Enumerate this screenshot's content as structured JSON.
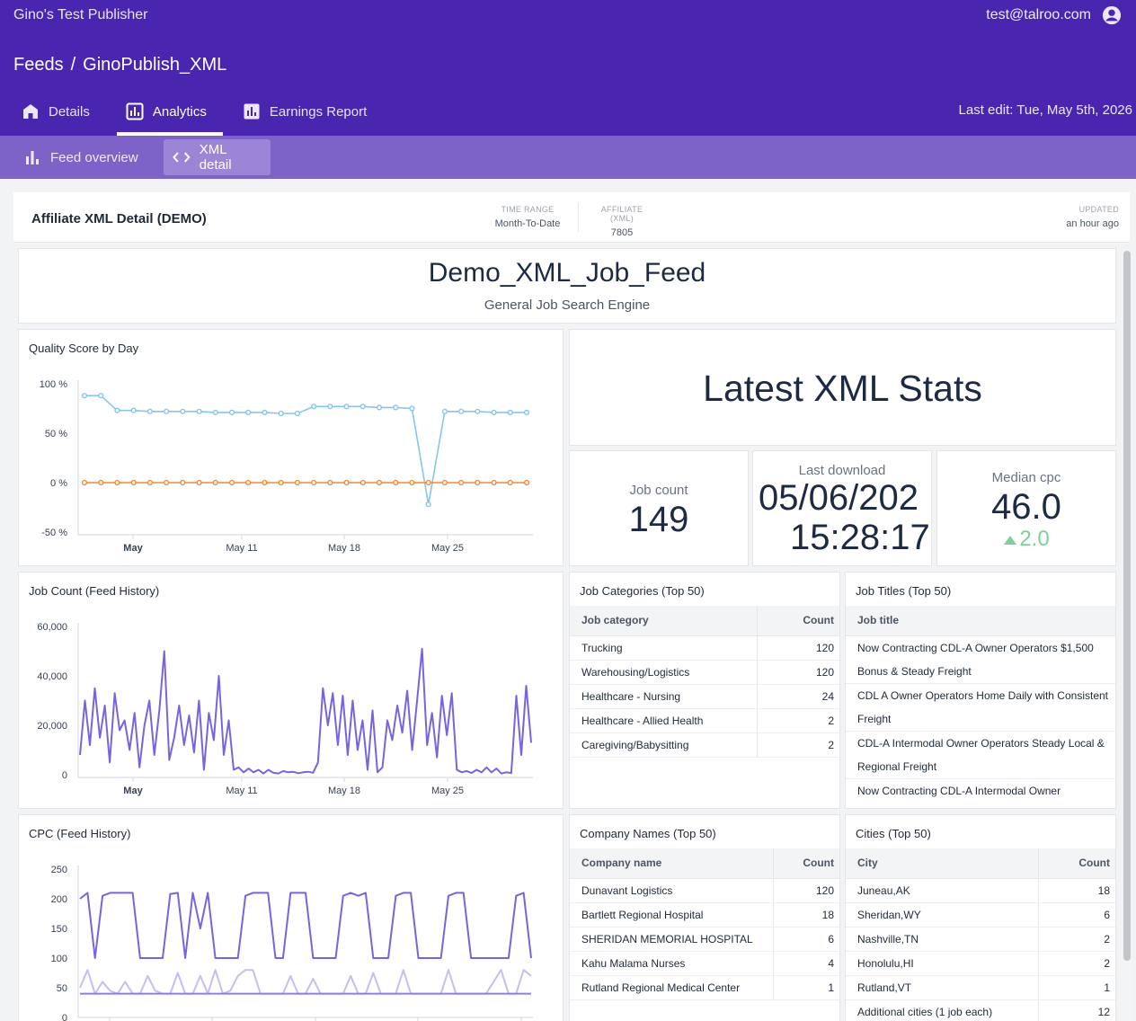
{
  "header": {
    "app_title": "Gino's Test Publisher",
    "user_email": "test@talroo.com",
    "breadcrumb": [
      "Feeds",
      "/",
      "GinoPublish_XML"
    ],
    "tabs": [
      {
        "label": "Details",
        "icon": "home-icon"
      },
      {
        "label": "Analytics",
        "icon": "analytics-icon",
        "active": true
      },
      {
        "label": "Earnings Report",
        "icon": "report-icon"
      }
    ],
    "last_edit": "Last edit: Tue, May 5th, 2026"
  },
  "subnav": {
    "items": [
      {
        "label": "Feed overview",
        "icon": "bar-chart-icon"
      },
      {
        "label": "XML detail",
        "icon": "code-icon",
        "active": true
      }
    ]
  },
  "report": {
    "title": "Affiliate XML Detail (DEMO)",
    "time_range_label": "TIME RANGE",
    "time_range_value": "Month-To-Date",
    "affiliate_label": "AFFILIATE (XML)",
    "affiliate_value": "7805",
    "updated_label": "UPDATED",
    "updated_value": "an hour ago"
  },
  "feed": {
    "name": "Demo_XML_Job_Feed",
    "subtitle": "General Job Search Engine"
  },
  "stats": {
    "title": "Latest XML Stats",
    "job_count_label": "Job count",
    "job_count_value": "149",
    "last_download_label": "Last download",
    "last_download_date": "05/06/202",
    "last_download_time": "15:28:17",
    "median_cpc_label": "Median cpc",
    "median_cpc_value": "46.0",
    "median_cpc_delta": "2.0",
    "colors": {
      "positive": "#7fcf9a"
    }
  },
  "job_categories": {
    "title": "Job Categories (Top 50)",
    "col_category": "Job category",
    "col_count": "Count",
    "rows": [
      {
        "name": "Trucking",
        "count": "120"
      },
      {
        "name": "Warehousing/Logistics",
        "count": "120"
      },
      {
        "name": "Healthcare - Nursing",
        "count": "24"
      },
      {
        "name": "Healthcare - Allied Health",
        "count": "2"
      },
      {
        "name": "Caregiving/Babysitting",
        "count": "2"
      }
    ]
  },
  "job_titles": {
    "title": "Job Titles (Top 50)",
    "col_title": "Job title",
    "rows": [
      "Now Contracting CDL-A Owner Operators $1,500 Bonus & Steady Freight",
      "CDL A Owner Operators Home Daily with Consistent Freight",
      "CDL-A Intermodal Owner Operators Steady Local & Regional Freight",
      "Now Contracting CDL-A Intermodal Owner Operators Steady Freight"
    ]
  },
  "company_names": {
    "title": "Company Names (Top 50)",
    "col_name": "Company name",
    "col_count": "Count",
    "rows": [
      {
        "name": "Dunavant Logistics",
        "count": "120"
      },
      {
        "name": "Bartlett Regional Hospital",
        "count": "18"
      },
      {
        "name": "SHERIDAN MEMORIAL HOSPITAL",
        "count": "6"
      },
      {
        "name": "Kahu Malama Nurses",
        "count": "4"
      },
      {
        "name": "Rutland Regional Medical Center",
        "count": "1"
      }
    ]
  },
  "cities": {
    "title": "Cities (Top 50)",
    "col_city": "City",
    "col_count": "Count",
    "rows": [
      {
        "name": "Juneau,AK",
        "count": "18"
      },
      {
        "name": "Sheridan,WY",
        "count": "6"
      },
      {
        "name": "Nashville,TN",
        "count": "2"
      },
      {
        "name": "Honolulu,HI",
        "count": "2"
      },
      {
        "name": "Rutland,VT",
        "count": "1"
      },
      {
        "name": "Additional cities (1 job each)",
        "count": "12"
      }
    ]
  },
  "chart_data": [
    {
      "type": "line",
      "title": "Quality Score by Day",
      "x_ticks": [
        "May",
        "May 11",
        "May 18",
        "May 25"
      ],
      "y_ticks": [
        "100 %",
        "50 %",
        "0 %",
        "-50 %"
      ],
      "ylim": [
        -50,
        100
      ],
      "series": [
        {
          "color": "#86c5ee",
          "values": [
            88,
            88,
            73,
            73,
            72,
            72,
            72,
            72,
            71,
            71,
            71,
            71,
            70,
            70,
            77,
            77,
            77,
            77,
            76,
            76,
            75,
            -22,
            72,
            72,
            72,
            71,
            71,
            71
          ]
        },
        {
          "color": "#f08a3c",
          "values": [
            0,
            0,
            0,
            0,
            0,
            0,
            0,
            0,
            0,
            0,
            0,
            0,
            0,
            0,
            0,
            0,
            0,
            0,
            0,
            0,
            0,
            0,
            0,
            0,
            0,
            0,
            0,
            0
          ]
        }
      ]
    },
    {
      "type": "line",
      "title": "Job Count (Feed History)",
      "x_ticks": [
        "May",
        "May 11",
        "May 18",
        "May 25"
      ],
      "y_ticks": [
        "60,000",
        "40,000",
        "20,000",
        "0"
      ],
      "ylim": [
        0,
        60000
      ],
      "series": [
        {
          "color": "#7a63e0",
          "values": [
            8000,
            30000,
            12000,
            35000,
            15000,
            28000,
            5000,
            33000,
            18000,
            22000,
            10000,
            25000,
            3000,
            20000,
            30000,
            8000,
            26000,
            50000,
            6000,
            15000,
            28000,
            12000,
            24000,
            9000,
            30000,
            2000,
            25000,
            14000,
            40000,
            8000,
            22000,
            2000,
            3000,
            1000,
            2500,
            1000,
            2000,
            500,
            2000,
            800,
            500,
            1500,
            1000,
            1200,
            600,
            1000,
            1200,
            800,
            5000,
            35000,
            20000,
            33000,
            12000,
            32000,
            8000,
            30000,
            10000,
            22000,
            2000,
            26000,
            1000,
            3000,
            22000,
            14000,
            28000,
            17000,
            34000,
            10000,
            30000,
            51000,
            12000,
            25000,
            7000,
            32000,
            16000,
            33000,
            2000,
            1000,
            1500,
            700,
            2000,
            1000,
            3000,
            1000,
            2500,
            500,
            1000,
            700,
            32000,
            8000,
            36000,
            13000
          ]
        }
      ]
    },
    {
      "type": "line",
      "title": "CPC (Feed History)",
      "y_ticks": [
        "250",
        "200",
        "150",
        "100",
        "50",
        "0"
      ],
      "ylim": [
        0,
        250
      ],
      "series": [
        {
          "color": "#7a63e0",
          "values": [
            200,
            210,
            100,
            205,
            210,
            210,
            210,
            210,
            100,
            100,
            100,
            100,
            208,
            210,
            100,
            210,
            150,
            210,
            100,
            100,
            100,
            100,
            205,
            210,
            210,
            210,
            100,
            100,
            210,
            210,
            210,
            100,
            100,
            100,
            100,
            205,
            210,
            205,
            210,
            100,
            100,
            100,
            205,
            210,
            210,
            100,
            100,
            100,
            100,
            205,
            210,
            210,
            100,
            100,
            100,
            100,
            100,
            100,
            205,
            210,
            100
          ]
        },
        {
          "color": "#c7bdf3",
          "values": [
            50,
            80,
            40,
            60,
            45,
            40,
            60,
            40,
            40,
            70,
            45,
            40,
            40,
            75,
            40,
            40,
            70,
            40,
            80,
            40,
            45,
            70,
            80,
            80,
            40,
            40,
            40,
            40,
            70,
            40,
            40,
            65,
            40,
            40,
            40,
            40,
            70,
            40,
            40,
            75,
            40,
            40,
            40,
            80,
            40,
            40,
            40,
            40,
            40,
            80,
            40,
            40,
            40,
            40,
            40,
            60,
            80,
            40,
            40,
            80,
            70
          ]
        },
        {
          "color": "#8f7ee8",
          "values": [
            40,
            40,
            40,
            40,
            40,
            40,
            40,
            40,
            40,
            40,
            40,
            40,
            40,
            40,
            40,
            40,
            40,
            40,
            40,
            40,
            40,
            40,
            40,
            40,
            40,
            40,
            40,
            40,
            40,
            40,
            40,
            40,
            40,
            40,
            40,
            40,
            40,
            40,
            40,
            40,
            40,
            40,
            40,
            40,
            40,
            40,
            40,
            40,
            40,
            40,
            40,
            40,
            40,
            40,
            40,
            40,
            40,
            40,
            40,
            40,
            40
          ]
        }
      ]
    }
  ]
}
